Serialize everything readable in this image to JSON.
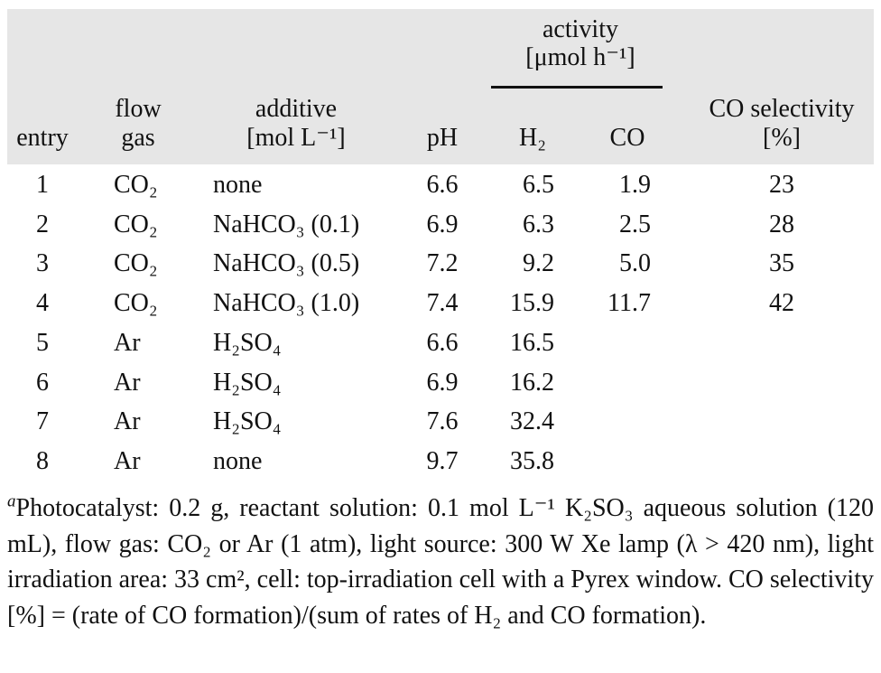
{
  "header": {
    "activity": "activity",
    "activity_unit": "[μmol h⁻¹]",
    "entry": "entry",
    "flow": "flow",
    "gas": "gas",
    "additive": "additive",
    "additive_unit": "[mol L⁻¹]",
    "pH": "pH",
    "H2": "H₂",
    "CO": "CO",
    "selectivity": "CO selectivity",
    "selectivity_unit": "[%]"
  },
  "table": {
    "rows": [
      {
        "entry": "1",
        "gas": "CO₂",
        "additive": "none",
        "pH": "6.6",
        "H2": "6.5",
        "CO": "1.9",
        "selectivity": "23"
      },
      {
        "entry": "2",
        "gas": "CO₂",
        "additive": "NaHCO₃ (0.1)",
        "pH": "6.9",
        "H2": "6.3",
        "CO": "2.5",
        "selectivity": "28"
      },
      {
        "entry": "3",
        "gas": "CO₂",
        "additive": "NaHCO₃ (0.5)",
        "pH": "7.2",
        "H2": "9.2",
        "CO": "5.0",
        "selectivity": "35"
      },
      {
        "entry": "4",
        "gas": "CO₂",
        "additive": "NaHCO₃ (1.0)",
        "pH": "7.4",
        "H2": "15.9",
        "CO": "11.7",
        "selectivity": "42"
      },
      {
        "entry": "5",
        "gas": "Ar",
        "additive": "H₂SO₄",
        "pH": "6.6",
        "H2": "16.5"
      },
      {
        "entry": "6",
        "gas": "Ar",
        "additive": "H₂SO₄",
        "pH": "6.9",
        "H2": "16.2"
      },
      {
        "entry": "7",
        "gas": "Ar",
        "additive": "H₂SO₄",
        "pH": "7.6",
        "H2": "32.4"
      },
      {
        "entry": "8",
        "gas": "Ar",
        "additive": "none",
        "pH": "9.7",
        "H2": "35.8"
      }
    ]
  },
  "footnote": {
    "marker": "a",
    "text": "Photocatalyst: 0.2 g, reactant solution: 0.1 mol L⁻¹ K₂SO₃ aqueous solution (120 mL), flow gas: CO₂ or Ar (1 atm), light source: 300 W Xe lamp (λ > 420 nm), light irradiation area: 33 cm², cell: top-irradiation cell with a Pyrex window. CO selectivity [%] = (rate of CO formation)/(sum of rates of H₂ and CO formation)."
  }
}
